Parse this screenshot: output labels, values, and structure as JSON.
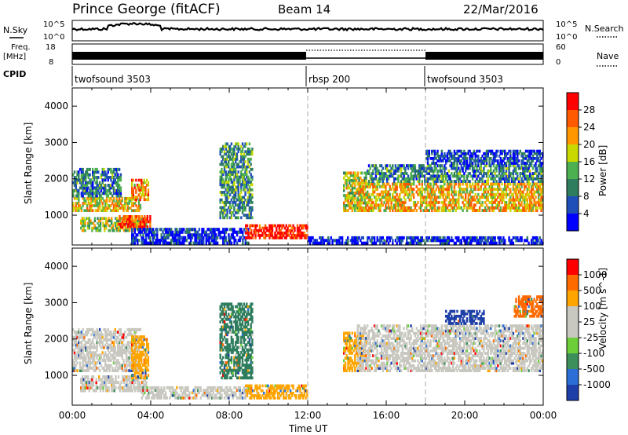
{
  "header": {
    "station": "Prince George (fitACF)",
    "beam": "Beam 14",
    "date": "22/Mar/2016"
  },
  "top_panels": {
    "nsky_label": "N.Sky",
    "nsky_ticks": [
      "10^5",
      "10^0"
    ],
    "nsearch_label": "N.Search",
    "nsearch_ticks": [
      "10^5",
      "10^0"
    ],
    "freq_label_1": "Freq.",
    "freq_label_2": "[MHz]",
    "freq_ticks": [
      "18",
      "8"
    ],
    "nave_label": "Nave",
    "nave_ticks": [
      "60",
      "0"
    ],
    "cpid_label": "CPID",
    "cpid_segments": [
      {
        "name": "twofsound 3503",
        "start_hour": 0
      },
      {
        "name": "rbsp 200",
        "start_hour": 12
      },
      {
        "name": "twofsound 3503",
        "start_hour": 18
      }
    ]
  },
  "chart_data": [
    {
      "type": "heatmap",
      "title": "",
      "quantity": "Power",
      "ylabel": "Slant Range [km]",
      "xlabel": "Time UT",
      "x_range_hours": [
        0,
        24
      ],
      "ylim": [
        180,
        4500
      ],
      "y_ticks": [
        "1000",
        "2000",
        "3000",
        "4000"
      ],
      "colorbar_label": "Power [dB]",
      "colorbar_ticks": [
        "4",
        "8",
        "12",
        "16",
        "20",
        "24",
        "28"
      ],
      "colorbar_colors": [
        "#0000ff",
        "#1e4fb8",
        "#2e7d5e",
        "#4caf50",
        "#c8d800",
        "#ff9800",
        "#ff5a00",
        "#ff0000"
      ],
      "regions": [
        {
          "t0": 0.0,
          "t1": 3.5,
          "r0": 1100,
          "r1": 1500,
          "level": 0.6
        },
        {
          "t0": 0.0,
          "t1": 2.5,
          "r0": 1500,
          "r1": 2300,
          "level": 0.3
        },
        {
          "t0": 0.4,
          "t1": 3.8,
          "r0": 550,
          "r1": 950,
          "level": 0.5
        },
        {
          "t0": 2.3,
          "t1": 4.0,
          "r0": 650,
          "r1": 1000,
          "level": 0.9
        },
        {
          "t0": 3.0,
          "t1": 3.9,
          "r0": 1400,
          "r1": 2000,
          "level": 0.7
        },
        {
          "t0": 3.0,
          "t1": 9.0,
          "r0": 200,
          "r1": 650,
          "level": 0.1
        },
        {
          "t0": 7.5,
          "t1": 9.2,
          "r0": 900,
          "r1": 3000,
          "level": 0.35
        },
        {
          "t0": 8.8,
          "t1": 12.0,
          "r0": 350,
          "r1": 750,
          "level": 0.95
        },
        {
          "t0": 13.8,
          "t1": 15.0,
          "r0": 1100,
          "r1": 2200,
          "level": 0.55
        },
        {
          "t0": 14.5,
          "t1": 24.0,
          "r0": 1100,
          "r1": 1900,
          "level": 0.65
        },
        {
          "t0": 15.0,
          "t1": 24.0,
          "r0": 1900,
          "r1": 2400,
          "level": 0.3
        },
        {
          "t0": 18.0,
          "t1": 24.0,
          "r0": 2400,
          "r1": 2800,
          "level": 0.15
        },
        {
          "t0": 12.0,
          "t1": 24.0,
          "r0": 200,
          "r1": 420,
          "level": 0.1
        }
      ]
    },
    {
      "type": "heatmap",
      "title": "",
      "quantity": "Velocity",
      "ylabel": "Slant Range [km]",
      "xlabel": "Time UT",
      "x_range_hours": [
        0,
        24
      ],
      "ylim": [
        180,
        4500
      ],
      "y_ticks": [
        "1000",
        "2000",
        "3000",
        "4000"
      ],
      "x_ticks": [
        "00:00",
        "04:00",
        "08:00",
        "12:00",
        "16:00",
        "20:00",
        "00:00"
      ],
      "colorbar_label": "Velocity [m s^-1]",
      "colorbar_ticks": [
        "1000",
        "500",
        "100",
        "25",
        "-25",
        "-100",
        "-500",
        "-1000"
      ],
      "colorbar_colors": [
        "#1f3fa8",
        "#2b6fd6",
        "#3c8f5a",
        "#6ccf3a",
        "#c8c8c0",
        "#c8c8c0",
        "#ffa500",
        "#ff6a00",
        "#ff0000"
      ],
      "regions": [
        {
          "t0": 0.0,
          "t1": 3.5,
          "r0": 1100,
          "r1": 2300,
          "color": "#c8c8c0"
        },
        {
          "t0": 0.4,
          "t1": 3.8,
          "r0": 550,
          "r1": 1000,
          "color": "#c8c8c0"
        },
        {
          "t0": 3.0,
          "t1": 3.9,
          "r0": 900,
          "r1": 2100,
          "color": "#ffa500"
        },
        {
          "t0": 3.5,
          "t1": 9.0,
          "r0": 350,
          "r1": 700,
          "color": "#c8c8c0"
        },
        {
          "t0": 7.5,
          "t1": 9.2,
          "r0": 900,
          "r1": 3000,
          "color": "#2e7d5e"
        },
        {
          "t0": 8.8,
          "t1": 12.0,
          "r0": 350,
          "r1": 750,
          "color": "#ffa500"
        },
        {
          "t0": 13.8,
          "t1": 15.0,
          "r0": 1100,
          "r1": 2200,
          "color": "#ffa500"
        },
        {
          "t0": 14.5,
          "t1": 24.0,
          "r0": 1100,
          "r1": 2400,
          "color": "#c8c8c0"
        },
        {
          "t0": 19.0,
          "t1": 21.0,
          "r0": 2400,
          "r1": 2800,
          "color": "#1f3fa8"
        },
        {
          "t0": 22.5,
          "t1": 24.0,
          "r0": 2600,
          "r1": 3200,
          "color": "#ff6a00"
        }
      ]
    }
  ]
}
